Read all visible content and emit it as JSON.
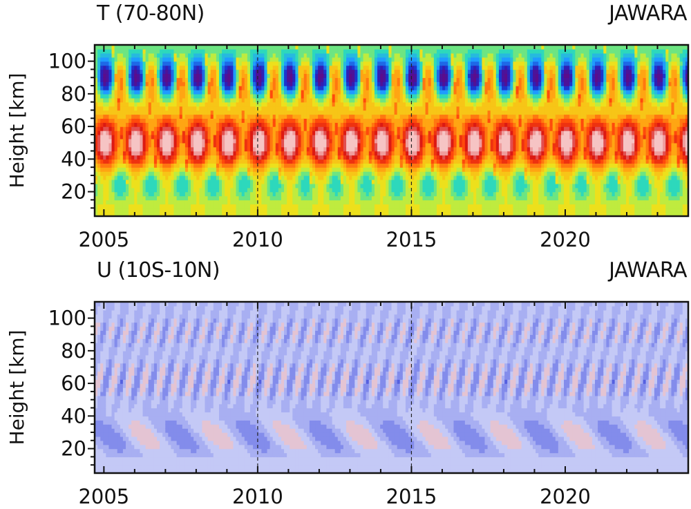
{
  "chart_data": [
    {
      "type": "heatmap",
      "title": "T (70-80N)",
      "label_right": "JAWARA",
      "ylabel": "Height [km]",
      "xlim": [
        2004.7,
        2024.0
      ],
      "ylim": [
        5,
        110
      ],
      "x_ticks": [
        2005,
        2010,
        2015,
        2020
      ],
      "y_ticks": [
        20,
        40,
        60,
        80,
        100
      ],
      "dashed_lines_x": [
        2010,
        2015
      ],
      "colormap": "rainbow",
      "colors": [
        "#5b0c8c",
        "#1c28c8",
        "#1f9bff",
        "#2fe0b4",
        "#e8ee1e",
        "#ffb014",
        "#ff4a0c",
        "#d81414",
        "#f6c4c4"
      ]
    },
    {
      "type": "heatmap",
      "title": "U (10S-10N)",
      "label_right": "JAWARA",
      "ylabel": "Height [km]",
      "xlim": [
        2004.7,
        2024.0
      ],
      "ylim": [
        5,
        110
      ],
      "x_ticks": [
        2005,
        2010,
        2015,
        2020
      ],
      "y_ticks": [
        20,
        40,
        60,
        80,
        100
      ],
      "dashed_lines_x": [
        2010,
        2015
      ],
      "colormap": "blue-white-red",
      "colors": [
        "#1b22c6",
        "#5560e0",
        "#9aa2f0",
        "#c4c9f6",
        "#f4c2c2",
        "#f08a8a",
        "#e23a3a"
      ]
    }
  ]
}
